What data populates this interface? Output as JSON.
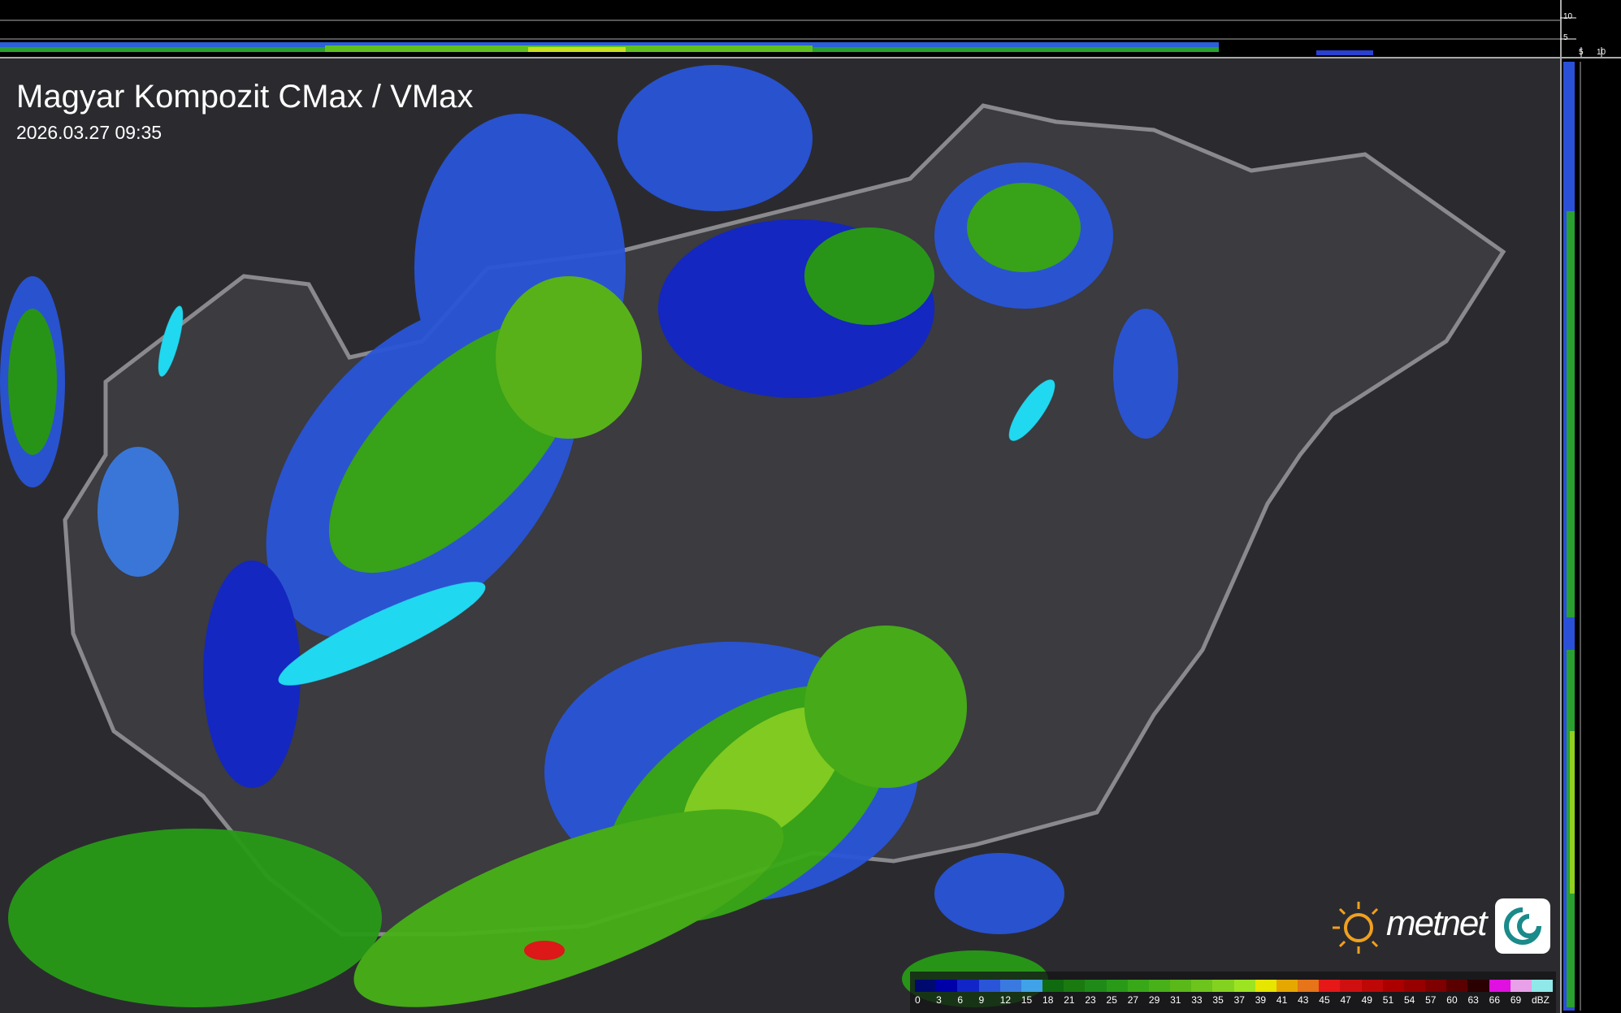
{
  "header": {
    "title": "Magyar Kompozit CMax / VMax",
    "timestamp": "2026.03.27 09:35"
  },
  "profile_axes": {
    "top_ticks": [
      "10",
      "5"
    ],
    "right_ticks": [
      "5",
      "10"
    ]
  },
  "legend": {
    "unit": "dBZ",
    "labels": [
      "0",
      "3",
      "6",
      "9",
      "12",
      "15",
      "18",
      "21",
      "23",
      "25",
      "27",
      "29",
      "31",
      "33",
      "35",
      "37",
      "39",
      "41",
      "43",
      "45",
      "47",
      "49",
      "51",
      "54",
      "57",
      "60",
      "63",
      "66",
      "69"
    ],
    "colors": [
      "#000a6e",
      "#0000a8",
      "#1226c8",
      "#2a55d8",
      "#3a7ae0",
      "#40a2e8",
      "#106a10",
      "#1a7a10",
      "#208a18",
      "#289a18",
      "#38a818",
      "#48b018",
      "#5ab818",
      "#6cc41c",
      "#84d220",
      "#9ce422",
      "#e6e600",
      "#e6a800",
      "#e67418",
      "#e61818",
      "#d01010",
      "#be0808",
      "#ac0000",
      "#960000",
      "#7e0000",
      "#5a0000",
      "#2a0000",
      "#e010e0",
      "#e8a0e8"
    ],
    "extra_color": "#90e8e8"
  },
  "logo": {
    "text": "metnet",
    "sun_color": "#f0a020",
    "icon_color": "#1a8a8a"
  },
  "map": {
    "background": "#2b2b2f",
    "country_fill": "#3b3b40",
    "border_color": "#8a8a8e",
    "lake_color": "#20d8f0"
  }
}
